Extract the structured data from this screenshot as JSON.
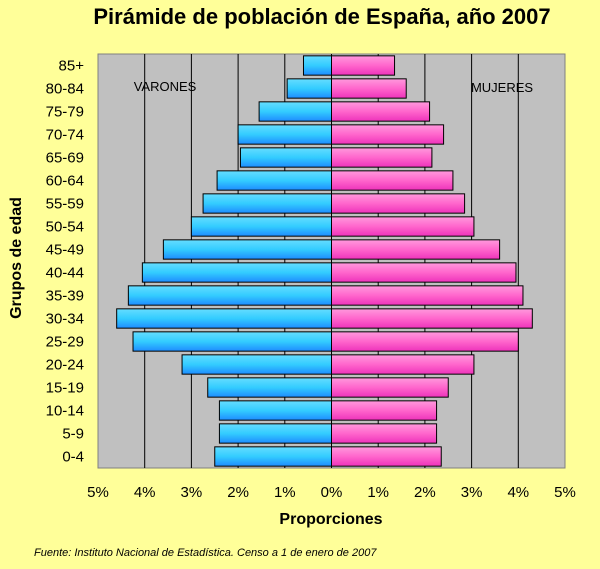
{
  "chart_data": {
    "type": "bar",
    "orientation": "horizontal-pyramid",
    "title": "Pirámide de población de España, año 2007",
    "xlabel": "Proporciones",
    "ylabel": "Grupos de edad",
    "categories": [
      "0-4",
      "5-9",
      "10-14",
      "15-19",
      "20-24",
      "25-29",
      "30-34",
      "35-39",
      "40-44",
      "45-49",
      "50-54",
      "55-59",
      "60-64",
      "65-69",
      "70-74",
      "75-79",
      "80-84",
      "85+"
    ],
    "series": [
      {
        "name": "VARONES",
        "color": "#33ccff",
        "values": [
          2.5,
          2.4,
          2.4,
          2.65,
          3.2,
          4.25,
          4.6,
          4.35,
          4.05,
          3.6,
          3.0,
          2.75,
          2.45,
          1.95,
          2.0,
          1.55,
          0.95,
          0.6
        ]
      },
      {
        "name": "MUJERES",
        "color": "#ff66cc",
        "values": [
          2.35,
          2.25,
          2.25,
          2.5,
          3.05,
          4.0,
          4.3,
          4.1,
          3.95,
          3.6,
          3.05,
          2.85,
          2.6,
          2.15,
          2.4,
          2.1,
          1.6,
          1.35
        ]
      }
    ],
    "xlim": [
      -5,
      5
    ],
    "xticks": [
      "5%",
      "4%",
      "3%",
      "2%",
      "1%",
      "0%",
      "1%",
      "2%",
      "3%",
      "4%",
      "5%"
    ],
    "grid": true,
    "label_left": "VARONES",
    "label_right": "MUJERES",
    "source": "Fuente: Instituto Nacional de Estadística. Censo a 1 de enero de 2007"
  }
}
